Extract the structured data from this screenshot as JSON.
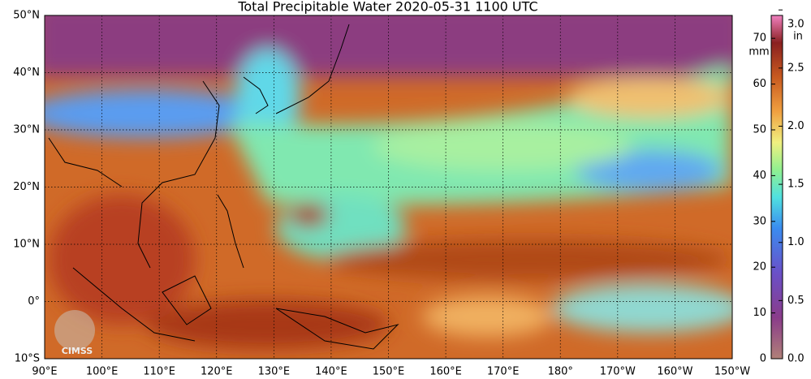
{
  "header": {
    "title": "Total Precipitable Water  2020-05-31 1100 UTC"
  },
  "latitudes": [
    {
      "value": 50,
      "label": "50°N"
    },
    {
      "value": 40,
      "label": "40°N"
    },
    {
      "value": 30,
      "label": "30°N"
    },
    {
      "value": 20,
      "label": "20°N"
    },
    {
      "value": 10,
      "label": "10°N"
    },
    {
      "value": 0,
      "label": "0°"
    },
    {
      "value": -10,
      "label": "10°S"
    }
  ],
  "longitudes": [
    {
      "value": 90,
      "label": "90°E"
    },
    {
      "value": 100,
      "label": "100°E"
    },
    {
      "value": 110,
      "label": "110°E"
    },
    {
      "value": 120,
      "label": "120°E"
    },
    {
      "value": 130,
      "label": "130°E"
    },
    {
      "value": 140,
      "label": "140°E"
    },
    {
      "value": 150,
      "label": "150°E"
    },
    {
      "value": 160,
      "label": "160°E"
    },
    {
      "value": 170,
      "label": "170°E"
    },
    {
      "value": 180,
      "label": "180°"
    },
    {
      "value": 190,
      "label": "170°W"
    },
    {
      "value": 200,
      "label": "160°W"
    },
    {
      "value": 210,
      "label": "150°W"
    }
  ],
  "colorbar": {
    "mm_label": "mm",
    "in_label": "in",
    "mm_ticks": [
      0,
      10,
      20,
      30,
      40,
      50,
      60,
      70
    ],
    "in_ticks": [
      {
        "value": 0,
        "label": "0.0"
      },
      {
        "value": 0.5,
        "label": "0.5"
      },
      {
        "value": 1,
        "label": "1.0"
      },
      {
        "value": 1.5,
        "label": "1.5"
      },
      {
        "value": 2,
        "label": "2.0"
      },
      {
        "value": 2.5,
        "label": "2.5"
      },
      {
        "value": 3,
        "label": "3.0"
      }
    ]
  },
  "logo": {
    "text": "CIMSS"
  }
}
